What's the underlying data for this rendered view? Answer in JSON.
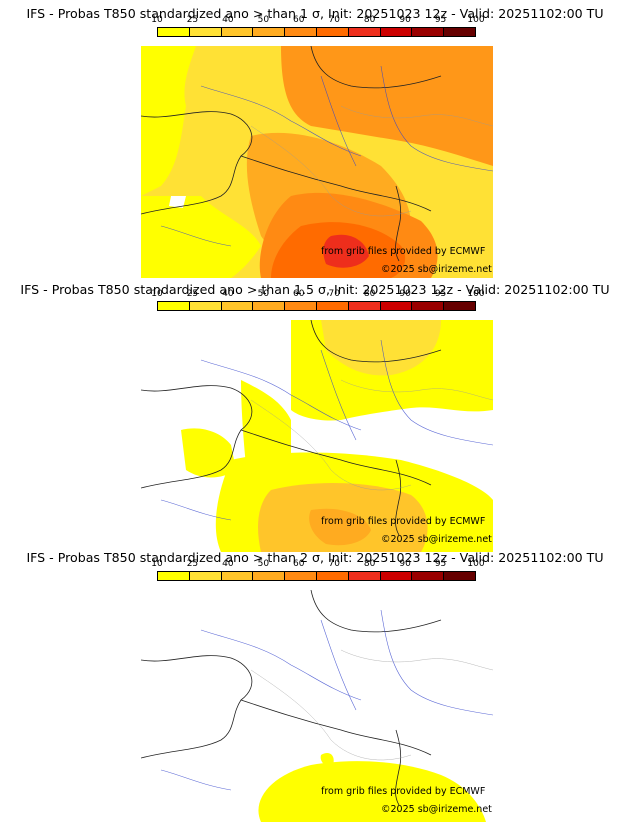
{
  "colorbar": {
    "labels": [
      "10",
      "25",
      "40",
      "50",
      "60",
      "70",
      "80",
      "90",
      "95",
      "100"
    ],
    "colors": [
      "#ffff00",
      "#ffe135",
      "#ffc52a",
      "#ffab20",
      "#ff8a13",
      "#ff6b00",
      "#ee2e1c",
      "#cc0000",
      "#990000",
      "#660000"
    ]
  },
  "panels": [
    {
      "title": "IFS - Probas T850  standardized ano > than 1 σ, Init: 20251023 12z - Valid: 20251102:00 TU",
      "threshold": "1 σ",
      "probability_level": "high",
      "credit_source": "from grib files provided by ECMWF",
      "credit_copyright": "©2025 sb@irizeme.net"
    },
    {
      "title": "IFS - Probas T850  standardized ano > than 1.5 σ, Init: 20251023 12z - Valid: 20251102:00 TU",
      "threshold": "1.5 σ",
      "probability_level": "medium",
      "credit_source": "from grib files provided by ECMWF",
      "credit_copyright": "©2025 sb@irizeme.net"
    },
    {
      "title": "IFS - Probas T850  standardized ano > than 2 σ, Init: 20251023 12z - Valid: 20251102:00 TU",
      "threshold": "2 σ",
      "probability_level": "low",
      "credit_source": "from grib files provided by ECMWF",
      "credit_copyright": "©2025 sb@irizeme.net"
    }
  ]
}
